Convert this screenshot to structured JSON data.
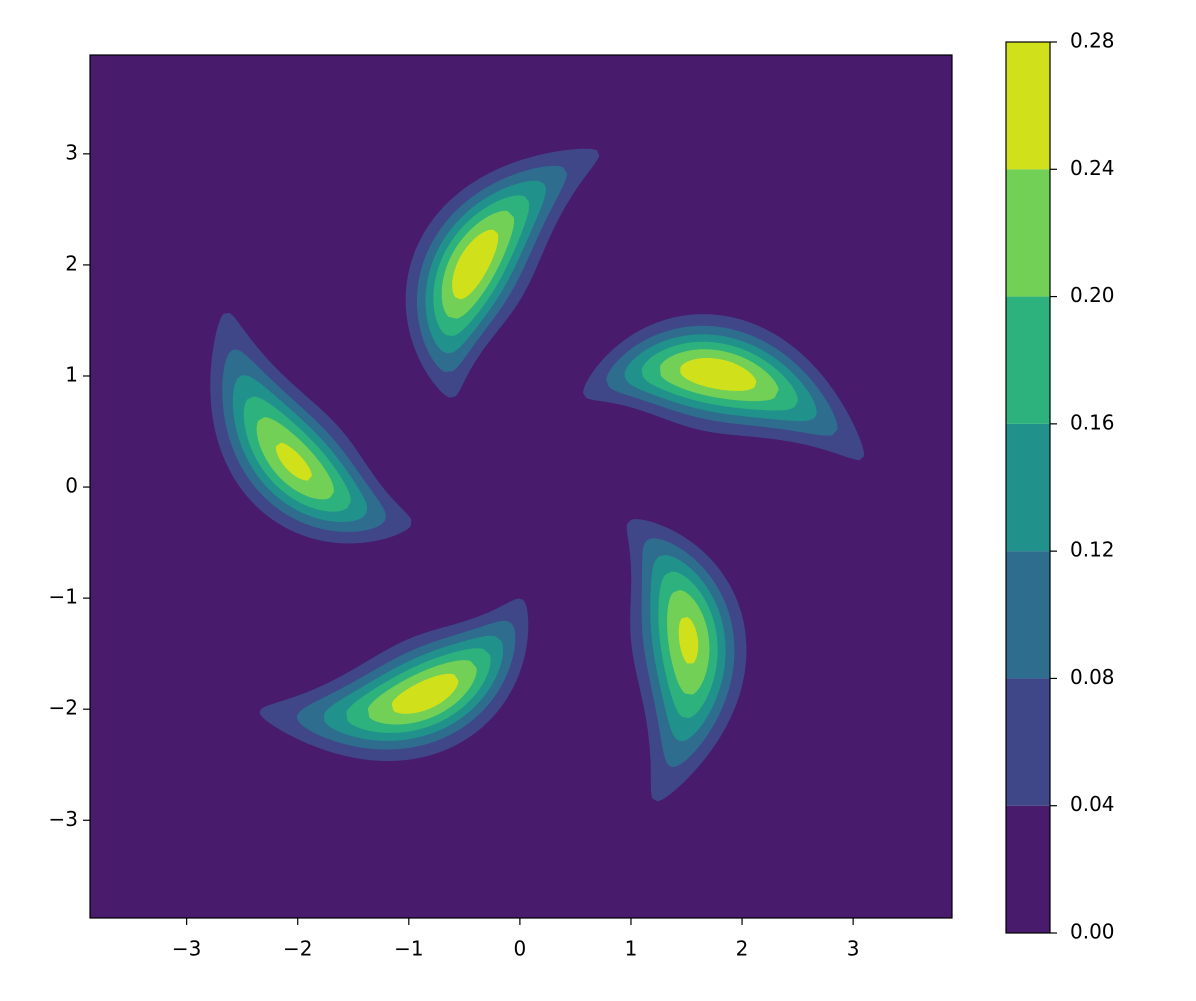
{
  "chart_data": {
    "type": "contourf",
    "xlim": [
      -3.87,
      3.89
    ],
    "ylim": [
      -3.88,
      3.89
    ],
    "xticks": [
      {
        "value": -3,
        "label": "−3"
      },
      {
        "value": -2,
        "label": "−2"
      },
      {
        "value": -1,
        "label": "−1"
      },
      0,
      1,
      2,
      3
    ],
    "yticks": [
      {
        "value": -3,
        "label": "−3"
      },
      {
        "value": -2,
        "label": "−2"
      },
      {
        "value": -1,
        "label": "−1"
      },
      0,
      1,
      2,
      3
    ],
    "levels": [
      {
        "value": 0,
        "label": "0.00"
      },
      0.04,
      0.08,
      0.12,
      0.16,
      {
        "value": 0.2,
        "label": "0.20"
      },
      0.24,
      0.28
    ],
    "colors": [
      "#481b6d",
      "#3f4788",
      "#2e6d8e",
      "#21918c",
      "#2db27d",
      "#73d056",
      "#d0e11c"
    ]
  }
}
